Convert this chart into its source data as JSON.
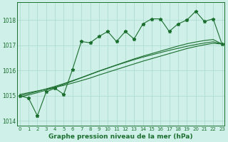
{
  "title": "Graphe pression niveau de la mer (hPa)",
  "background_color": "#cff0e8",
  "grid_color": "#aad8cc",
  "line_color": "#1a6e2e",
  "x_values": [
    0,
    1,
    2,
    3,
    4,
    5,
    6,
    7,
    8,
    9,
    10,
    11,
    12,
    13,
    14,
    15,
    16,
    17,
    18,
    19,
    20,
    21,
    22,
    23
  ],
  "y_zigzag": [
    1015.0,
    1014.9,
    1014.2,
    1015.15,
    1015.3,
    1015.05,
    1016.05,
    1017.15,
    1017.1,
    1017.35,
    1017.55,
    1017.15,
    1017.55,
    1017.25,
    1017.85,
    1018.05,
    1018.05,
    1017.55,
    1017.85,
    1018.0,
    1018.35,
    1017.95,
    1018.05,
    1017.05
  ],
  "y_linear1": [
    1015.05,
    1015.12,
    1015.19,
    1015.26,
    1015.33,
    1015.41,
    1015.5,
    1015.6,
    1015.7,
    1015.82,
    1015.93,
    1016.04,
    1016.15,
    1016.26,
    1016.37,
    1016.47,
    1016.57,
    1016.67,
    1016.77,
    1016.87,
    1016.95,
    1017.02,
    1017.08,
    1017.05
  ],
  "y_linear2": [
    1015.0,
    1015.08,
    1015.17,
    1015.27,
    1015.37,
    1015.48,
    1015.6,
    1015.72,
    1015.85,
    1015.98,
    1016.1,
    1016.22,
    1016.34,
    1016.46,
    1016.57,
    1016.67,
    1016.77,
    1016.87,
    1016.97,
    1017.06,
    1017.13,
    1017.19,
    1017.23,
    1017.05
  ],
  "y_linear3": [
    1014.95,
    1015.03,
    1015.12,
    1015.22,
    1015.33,
    1015.45,
    1015.58,
    1015.71,
    1015.84,
    1015.97,
    1016.09,
    1016.21,
    1016.32,
    1016.43,
    1016.53,
    1016.62,
    1016.71,
    1016.8,
    1016.88,
    1016.96,
    1017.03,
    1017.09,
    1017.14,
    1017.05
  ],
  "ylim": [
    1013.8,
    1018.7
  ],
  "yticks": [
    1014,
    1015,
    1016,
    1017,
    1018
  ],
  "xticks": [
    0,
    1,
    2,
    3,
    4,
    5,
    6,
    7,
    8,
    9,
    10,
    11,
    12,
    13,
    14,
    15,
    16,
    17,
    18,
    19,
    20,
    21,
    22,
    23
  ],
  "xlim": [
    -0.3,
    23.3
  ],
  "title_fontsize": 6.5,
  "tick_fontsize": 5.0
}
